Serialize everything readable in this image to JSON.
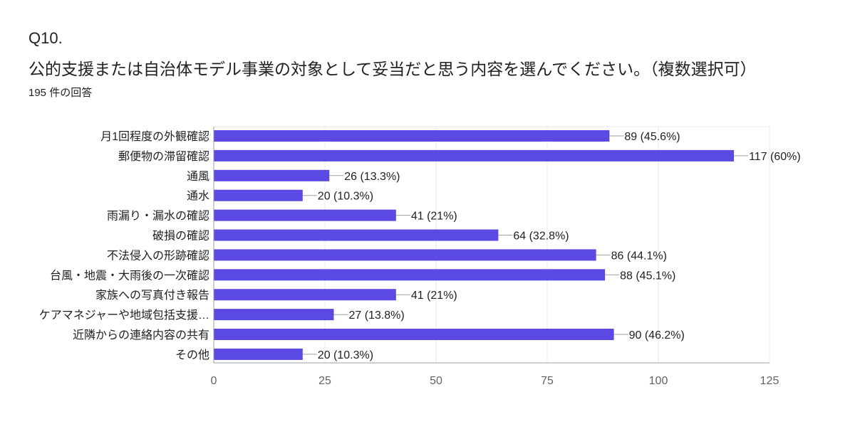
{
  "question": {
    "number": "Q10.",
    "title": "公的支援または自治体モデル事業の対象として妥当だと思う内容を選んでください。（複数選択可）",
    "response_count": "195 件の回答"
  },
  "colors": {
    "bar": "#5a4ae3",
    "grid": "#e8e8ee",
    "axis": "#9aa0a6",
    "leader": "#9aa0a6"
  },
  "chart_data": {
    "type": "bar",
    "orientation": "horizontal",
    "categories": [
      "月1回程度の外観確認",
      "郵便物の滞留確認",
      "通風",
      "通水",
      "雨漏り・漏水の確認",
      "破損の確認",
      "不法侵入の形跡確認",
      "台風・地震・大雨後の一次確認",
      "家族への写真付き報告",
      "ケアマネジャーや地域包括支援…",
      "近隣からの連絡内容の共有",
      "その他"
    ],
    "values": [
      89,
      117,
      26,
      20,
      41,
      64,
      86,
      88,
      41,
      27,
      90,
      20
    ],
    "value_labels": [
      "89 (45.6%)",
      "117 (60%)",
      "26 (13.3%)",
      "20 (10.3%)",
      "41 (21%)",
      "64 (32.8%)",
      "86 (44.1%)",
      "88 (45.1%)",
      "41 (21%)",
      "27 (13.8%)",
      "90 (46.2%)",
      "20 (10.3%)"
    ],
    "xlim": [
      0,
      125
    ],
    "xticks": [
      0,
      25,
      50,
      75,
      100,
      125
    ],
    "xtick_labels": [
      "0",
      "25",
      "50",
      "75",
      "100",
      "125"
    ],
    "grid": true,
    "legend": "none"
  }
}
